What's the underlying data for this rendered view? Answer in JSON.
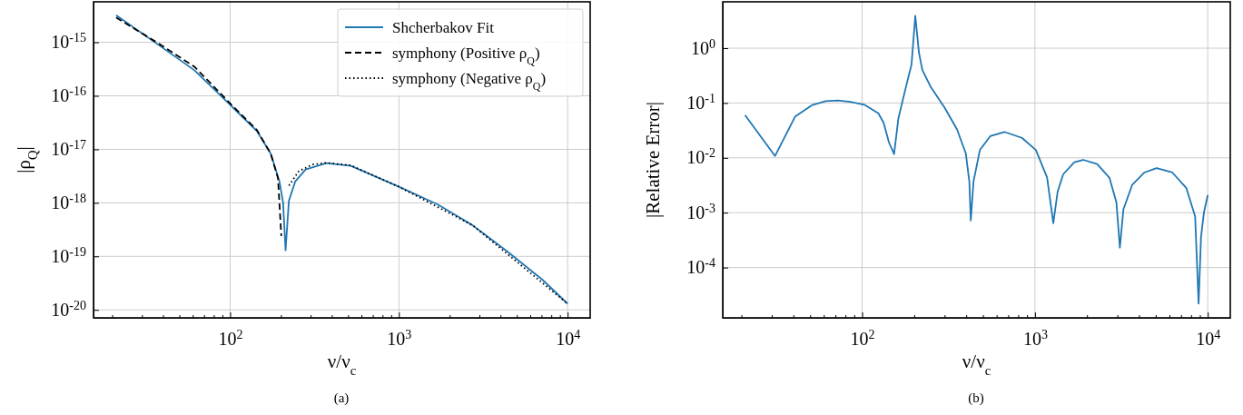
{
  "chart_data": [
    {
      "type": "line",
      "xlabel": "ν/ν$_{c}$",
      "ylabel": "|ρ$_{Q}$|",
      "log": "xy",
      "grid": true,
      "legend": "top right",
      "annotations": [
        "(a)"
      ],
      "xlim": [
        15.5,
        13600
      ],
      "ylim": [
        7.1e-21,
        5.7e-15
      ],
      "xticks": [
        {
          "value": 20,
          "label": null
        },
        {
          "value": 30,
          "label": null
        },
        {
          "value": 40,
          "label": null
        },
        {
          "value": 50,
          "label": null
        },
        {
          "value": 60,
          "label": null
        },
        {
          "value": 70,
          "label": null
        },
        {
          "value": 80,
          "label": null
        },
        {
          "value": 90,
          "label": null
        },
        {
          "value": 100,
          "label": "10$^{2}$"
        },
        {
          "value": 200,
          "label": null
        },
        {
          "value": 300,
          "label": null
        },
        {
          "value": 400,
          "label": null
        },
        {
          "value": 500,
          "label": null
        },
        {
          "value": 600,
          "label": null
        },
        {
          "value": 700,
          "label": null
        },
        {
          "value": 800,
          "label": null
        },
        {
          "value": 900,
          "label": null
        },
        {
          "value": 1000,
          "label": "10$^{3}$"
        },
        {
          "value": 2000,
          "label": null
        },
        {
          "value": 3000,
          "label": null
        },
        {
          "value": 4000,
          "label": null
        },
        {
          "value": 5000,
          "label": null
        },
        {
          "value": 6000,
          "label": null
        },
        {
          "value": 7000,
          "label": null
        },
        {
          "value": 8000,
          "label": null
        },
        {
          "value": 9000,
          "label": null
        },
        {
          "value": 10000,
          "label": "10$^{4}$"
        }
      ],
      "yticks": [
        {
          "value": 1e-20,
          "label": "10$^{-20}$"
        },
        {
          "value": 1e-19,
          "label": "10$^{-19}$"
        },
        {
          "value": 1e-18,
          "label": "10$^{-18}$"
        },
        {
          "value": 1e-17,
          "label": "10$^{-17}$"
        },
        {
          "value": 1e-16,
          "label": "10$^{-16}$"
        },
        {
          "value": 1e-15,
          "label": "10$^{-15}$"
        }
      ],
      "series": [
        {
          "name": "Shcherbakov Fit",
          "color": "#1f77b4",
          "line_style": "solid",
          "x": [
            21.1,
            38.1,
            61.4,
            100,
            144,
            174,
            196,
            206,
            213,
            223,
            243,
            280,
            372,
            519,
            1000,
            1702,
            2735,
            4395,
            7063,
            10000
          ],
          "values": [
            3.2e-15,
            8.7e-16,
            3e-16,
            6.8e-17,
            2.2e-17,
            8.3e-18,
            2.5e-18,
            1e-18,
            1.3e-19,
            1.1e-18,
            2.5e-18,
            4.2e-18,
            5.5e-18,
            4.9e-18,
            2e-18,
            9.3e-19,
            3.8e-19,
            1.23e-19,
            3.7e-20,
            1.3e-20
          ]
        },
        {
          "name": "symphony (Positive ρ$_{Q}$)",
          "color": "#000000",
          "line_style": "dashed",
          "x": [
            21.1,
            38.1,
            61.4,
            100,
            144,
            174,
            192,
            201
          ],
          "values": [
            2.9e-15,
            9.3e-16,
            3.5e-16,
            7.2e-17,
            2.3e-17,
            8.3e-18,
            2.9e-18,
            2.4e-19
          ]
        },
        {
          "name": "symphony (Negative ρ$_{Q}$)",
          "color": "#000000",
          "line_style": "dotted",
          "x": [
            223,
            255,
            308,
            372,
            519,
            1000,
            2735,
            10000
          ],
          "values": [
            2.1e-18,
            3.9e-18,
            5.2e-18,
            5.6e-18,
            5e-18,
            2e-18,
            3.8e-19,
            1.3e-20
          ]
        }
      ]
    },
    {
      "type": "line",
      "xlabel": "ν/ν$_{c}$",
      "ylabel": "|Relative Error|",
      "log": "xy",
      "grid": true,
      "annotations": [
        "(b)"
      ],
      "xlim": [
        15.6,
        13500
      ],
      "ylim": [
        1.21e-05,
        7.0
      ],
      "xticks": [
        {
          "value": 20,
          "label": null
        },
        {
          "value": 30,
          "label": null
        },
        {
          "value": 40,
          "label": null
        },
        {
          "value": 50,
          "label": null
        },
        {
          "value": 60,
          "label": null
        },
        {
          "value": 70,
          "label": null
        },
        {
          "value": 80,
          "label": null
        },
        {
          "value": 90,
          "label": null
        },
        {
          "value": 100,
          "label": "10$^{2}$"
        },
        {
          "value": 200,
          "label": null
        },
        {
          "value": 300,
          "label": null
        },
        {
          "value": 400,
          "label": null
        },
        {
          "value": 500,
          "label": null
        },
        {
          "value": 600,
          "label": null
        },
        {
          "value": 700,
          "label": null
        },
        {
          "value": 800,
          "label": null
        },
        {
          "value": 900,
          "label": null
        },
        {
          "value": 1000,
          "label": "10$^{3}$"
        },
        {
          "value": 2000,
          "label": null
        },
        {
          "value": 3000,
          "label": null
        },
        {
          "value": 4000,
          "label": null
        },
        {
          "value": 5000,
          "label": null
        },
        {
          "value": 6000,
          "label": null
        },
        {
          "value": 7000,
          "label": null
        },
        {
          "value": 8000,
          "label": null
        },
        {
          "value": 9000,
          "label": null
        },
        {
          "value": 10000,
          "label": "10$^{4}$"
        }
      ],
      "yticks": [
        {
          "value": 0.0001,
          "label": "10$^{-4}$"
        },
        {
          "value": 0.001,
          "label": "10$^{-3}$"
        },
        {
          "value": 0.01,
          "label": "10$^{-2}$"
        },
        {
          "value": 0.1,
          "label": "10$^{-1}$"
        },
        {
          "value": 1,
          "label": "10$^{0}$"
        }
      ],
      "series": [
        {
          "color": "#1f77b4",
          "line_style": "solid",
          "x": [
            21.0,
            31.3,
            41.0,
            51.1,
            61.5,
            72.4,
            85.3,
            103,
            124,
            133,
            143,
            153,
            162,
            180,
            193,
            203,
            213,
            223,
            250,
            301,
            354,
            398,
            417,
            425,
            441,
            480,
            552,
            665,
            840,
            1012,
            1175,
            1277,
            1352,
            1456,
            1690,
            1900,
            2290,
            2700,
            2960,
            3100,
            3250,
            3650,
            4300,
            5060,
            6240,
            7520,
            8450,
            8850,
            9140,
            9500,
            10000
          ],
          "values": [
            0.06,
            0.0108,
            0.057,
            0.091,
            0.108,
            0.111,
            0.105,
            0.093,
            0.065,
            0.044,
            0.019,
            0.0117,
            0.052,
            0.209,
            0.5,
            3.9,
            0.84,
            0.4,
            0.194,
            0.081,
            0.033,
            0.012,
            0.0037,
            0.00072,
            0.0037,
            0.0139,
            0.025,
            0.0297,
            0.0232,
            0.0139,
            0.0044,
            0.00064,
            0.0024,
            0.005,
            0.0083,
            0.0092,
            0.0077,
            0.0043,
            0.00155,
            0.00023,
            0.00115,
            0.0032,
            0.0054,
            0.0065,
            0.0054,
            0.0028,
            0.00086,
            2.2e-05,
            0.00036,
            0.001,
            0.0021
          ]
        }
      ]
    }
  ]
}
